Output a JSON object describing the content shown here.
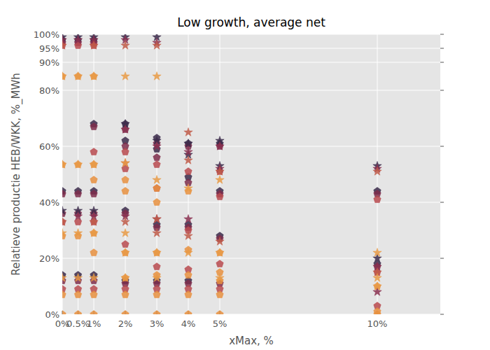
{
  "chart_data": {
    "type": "scatter",
    "title": "Low growth, average net",
    "x_label": "xMax, %",
    "y_label": "Relatieve productie HEB/WKK, %_MWh",
    "xlim": [
      0,
      12
    ],
    "ylim": [
      0,
      100
    ],
    "xticks": [
      {
        "value": 0,
        "label": "0%"
      },
      {
        "value": 0.5,
        "label": "0.5%"
      },
      {
        "value": 1,
        "label": "1%"
      },
      {
        "value": 2,
        "label": "2%"
      },
      {
        "value": 3,
        "label": "3%"
      },
      {
        "value": 4,
        "label": "4%"
      },
      {
        "value": 5,
        "label": "5%"
      },
      {
        "value": 10,
        "label": "10%"
      }
    ],
    "yticks": [
      {
        "value": 0,
        "label": "0%"
      },
      {
        "value": 20,
        "label": "20%"
      },
      {
        "value": 40,
        "label": "40%"
      },
      {
        "value": 60,
        "label": "60%"
      },
      {
        "value": 80,
        "label": "80%"
      },
      {
        "value": 90,
        "label": "90%"
      },
      {
        "value": 95,
        "label": "95%"
      },
      {
        "value": 100,
        "label": "100%"
      }
    ],
    "grid": true,
    "series": [
      {
        "color": "#3b2a4a",
        "marker": "pentagon",
        "x": [
          0,
          0,
          0,
          0.5,
          0.5,
          0.5,
          1,
          1,
          1,
          1,
          2,
          2,
          2,
          2,
          3,
          3,
          3,
          3,
          4,
          4,
          4,
          4,
          5,
          5,
          5,
          10,
          10
        ],
        "values": [
          98,
          44,
          14,
          98,
          44,
          14,
          98,
          68,
          44,
          14,
          68,
          62,
          37,
          12,
          63,
          59,
          32,
          12,
          61,
          49,
          32,
          12,
          61,
          44,
          28,
          44,
          18
        ]
      },
      {
        "color": "#7e2d4b",
        "marker": "pentagon",
        "x": [
          0,
          0,
          0,
          0,
          0.5,
          0.5,
          0.5,
          0.5,
          1,
          1,
          1,
          1,
          1,
          2,
          2,
          2,
          2,
          3,
          3,
          3,
          3,
          4,
          4,
          4,
          4,
          5,
          5,
          5,
          5,
          10,
          10
        ],
        "values": [
          97,
          43,
          36,
          12,
          97,
          43,
          36,
          12,
          97,
          67,
          43,
          36,
          12,
          66,
          60,
          36,
          11,
          61,
          56,
          31,
          11,
          60,
          47,
          31,
          11,
          60,
          43,
          27,
          11,
          43,
          17
        ]
      },
      {
        "color": "#b84a4f",
        "marker": "pentagon",
        "x": [
          0,
          0,
          0,
          0.5,
          0.5,
          0.5,
          1,
          1,
          1,
          1,
          2,
          2,
          2,
          2,
          3,
          3,
          3,
          3,
          4,
          4,
          4,
          4,
          5,
          5,
          5,
          5,
          10,
          10,
          10
        ],
        "values": [
          96,
          33,
          9,
          96,
          33,
          9,
          96,
          58,
          33,
          9,
          58,
          52,
          25,
          9,
          53.5,
          45,
          17,
          9,
          51,
          30,
          16,
          9,
          51,
          42,
          18,
          9,
          41,
          15,
          3
        ]
      },
      {
        "color": "#e8913f",
        "marker": "pentagon",
        "x": [
          0,
          0,
          0,
          0,
          0,
          0.5,
          0.5,
          0.5,
          0.5,
          0.5,
          1,
          1,
          1,
          1,
          1,
          1,
          1,
          2,
          2,
          2,
          2,
          2,
          2,
          3,
          3,
          3,
          3,
          3,
          3,
          4,
          4,
          4,
          4,
          4,
          5,
          5,
          5,
          5,
          5,
          10,
          10,
          10
        ],
        "values": [
          85,
          53.5,
          28,
          7,
          0,
          85,
          53.5,
          28,
          7,
          0,
          85,
          53.5,
          48,
          29,
          22,
          7,
          0,
          48,
          44,
          22,
          13,
          7,
          0,
          45,
          40,
          22,
          14,
          7,
          0,
          44,
          23,
          14,
          7,
          0,
          22,
          15,
          12,
          7,
          0,
          10,
          1,
          0
        ]
      },
      {
        "color": "#3b2a4a",
        "marker": "star",
        "x": [
          0,
          0,
          0.5,
          0.5,
          1,
          1,
          2,
          2,
          3,
          3,
          4,
          4,
          5,
          5,
          10,
          10
        ],
        "values": [
          99,
          37,
          99,
          37,
          99,
          37,
          99,
          68,
          99,
          62,
          61,
          57,
          62,
          53,
          53,
          20
        ]
      },
      {
        "color": "#8a3050",
        "marker": "star",
        "x": [
          0,
          0.5,
          0.5,
          1,
          1,
          2,
          2,
          2,
          3,
          3,
          3,
          4,
          4,
          5,
          5,
          10,
          10,
          10
        ],
        "values": [
          98,
          98,
          35,
          98,
          35,
          98,
          66,
          35,
          97,
          60,
          34,
          58,
          34,
          60,
          52,
          52,
          17,
          8
        ]
      },
      {
        "color": "#c05a48",
        "marker": "star",
        "x": [
          0,
          0,
          1,
          1,
          2,
          2,
          2,
          3,
          3,
          3,
          4,
          4,
          4,
          5,
          5,
          10,
          10
        ],
        "values": [
          96,
          33,
          96,
          33,
          96,
          54,
          33,
          96,
          34,
          29,
          55,
          28,
          65,
          51,
          26,
          51,
          15
        ]
      },
      {
        "color": "#e89a45",
        "marker": "star",
        "x": [
          0,
          0,
          0,
          0,
          0.5,
          0.5,
          0.5,
          0.5,
          1,
          1,
          1,
          1,
          2,
          2,
          2,
          2,
          2,
          3,
          3,
          3,
          3,
          4,
          4,
          5,
          5,
          5,
          10,
          10,
          10
        ],
        "values": [
          85,
          53.5,
          29,
          13,
          85,
          53.5,
          29,
          13,
          85,
          53.5,
          29,
          13,
          85,
          54,
          29,
          22,
          13,
          85,
          48,
          22,
          13,
          45,
          22,
          48,
          22,
          13,
          22,
          13,
          10
        ]
      }
    ]
  }
}
